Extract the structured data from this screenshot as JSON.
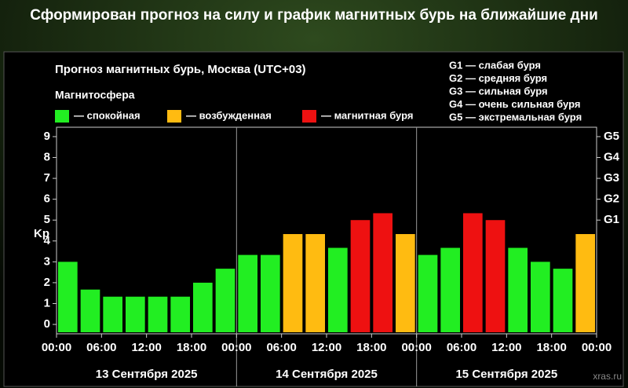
{
  "header": {
    "title": "Сформирован прогноз на силу и график магнитных бурь на ближайшие дни"
  },
  "chart_data": {
    "type": "bar",
    "title": "Прогноз магнитных бурь, Москва (UTC+03)",
    "legend_title": "Магнитосфера",
    "legend": [
      {
        "name": "— спокойная",
        "color": "#22ee22"
      },
      {
        "name": "— возбужденная",
        "color": "#ffbb11"
      },
      {
        "name": "— магнитная буря",
        "color": "#ee1111"
      }
    ],
    "storm_scale": [
      "G1 — слабая буря",
      "G2 — средняя буря",
      "G3 — сильная буря",
      "G4 — очень сильная буря",
      "G5 — экстремальная буря"
    ],
    "y_label": "Kp",
    "x": [
      0,
      3,
      6,
      9,
      12,
      15,
      18,
      21,
      24,
      27,
      30,
      33,
      36,
      39,
      42,
      45,
      48,
      51,
      54,
      57,
      60,
      63,
      66,
      69
    ],
    "values": [
      3.0,
      1.67,
      1.33,
      1.33,
      1.33,
      1.33,
      2.0,
      2.67,
      3.33,
      3.33,
      4.33,
      4.33,
      3.67,
      5.0,
      5.33,
      4.33,
      3.33,
      3.67,
      5.33,
      5.0,
      3.67,
      3.0,
      2.67,
      4.33
    ],
    "colors": [
      "#22ee22",
      "#22ee22",
      "#22ee22",
      "#22ee22",
      "#22ee22",
      "#22ee22",
      "#22ee22",
      "#22ee22",
      "#22ee22",
      "#22ee22",
      "#ffbb11",
      "#ffbb11",
      "#22ee22",
      "#ee1111",
      "#ee1111",
      "#ffbb11",
      "#22ee22",
      "#22ee22",
      "#ee1111",
      "#ee1111",
      "#22ee22",
      "#22ee22",
      "#22ee22",
      "#ffbb11"
    ],
    "xlim": [
      0,
      72
    ],
    "xticks": [
      {
        "value": 0,
        "label": "00:00"
      },
      {
        "value": 6,
        "label": "06:00"
      },
      {
        "value": 12,
        "label": "12:00"
      },
      {
        "value": 18,
        "label": "18:00"
      },
      {
        "value": 24,
        "label": "00:00"
      },
      {
        "value": 30,
        "label": "06:00"
      },
      {
        "value": 36,
        "label": "12:00"
      },
      {
        "value": 42,
        "label": "18:00"
      },
      {
        "value": 48,
        "label": "00:00"
      },
      {
        "value": 54,
        "label": "06:00"
      },
      {
        "value": 60,
        "label": "12:00"
      },
      {
        "value": 66,
        "label": "18:00"
      },
      {
        "value": 72,
        "label": "00:00"
      }
    ],
    "days": [
      "13 Сентября 2025",
      "14 Сентября 2025",
      "15 Сентября 2025"
    ],
    "ylim": [
      -0.45,
      9.45
    ],
    "yticks": [
      0,
      1,
      2,
      3,
      4,
      5,
      6,
      7,
      8,
      9
    ],
    "y2lim": [
      -0.45,
      9.45
    ],
    "y2ticks": [
      {
        "value": 5,
        "label": "G1"
      },
      {
        "value": 6,
        "label": "G2"
      },
      {
        "value": 7,
        "label": "G3"
      },
      {
        "value": 8,
        "label": "G4"
      },
      {
        "value": 9,
        "label": "G5"
      }
    ],
    "watermark": "xras.ru"
  }
}
